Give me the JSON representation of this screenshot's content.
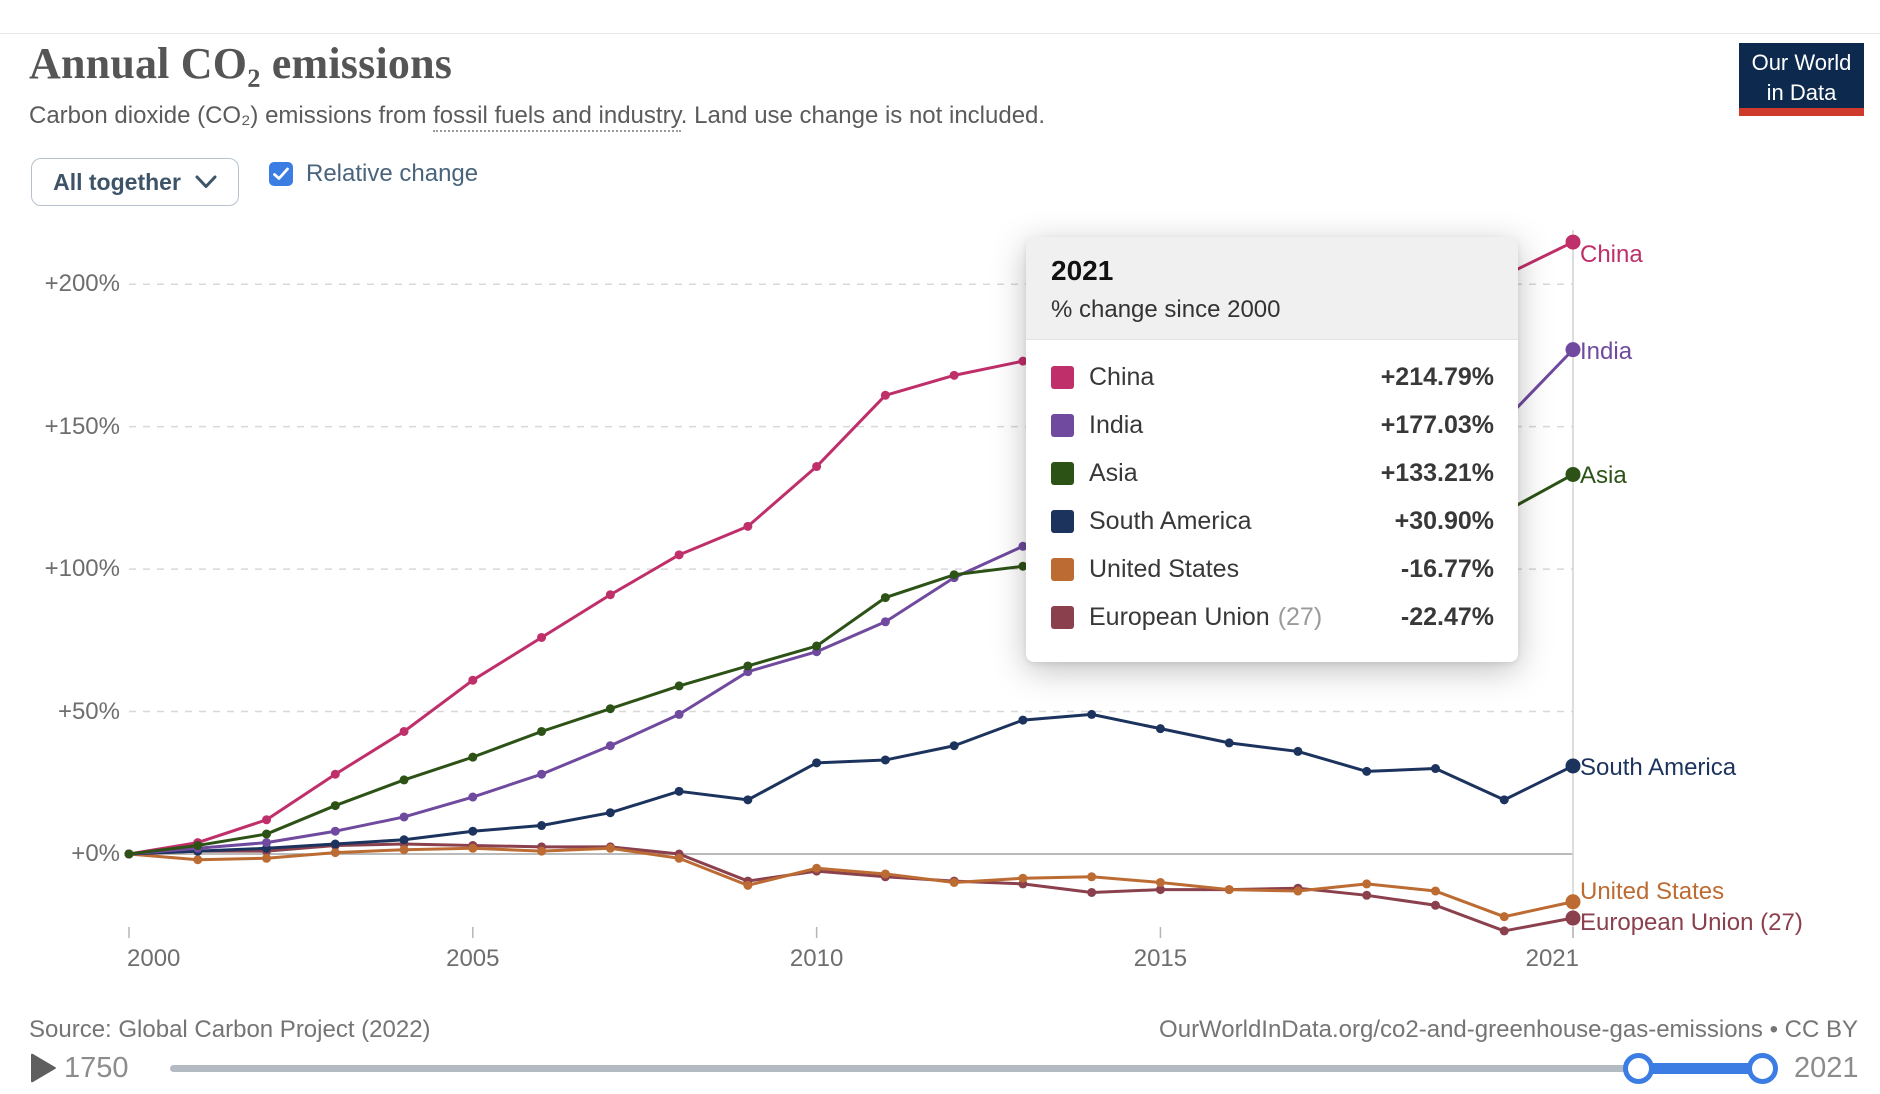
{
  "header": {
    "title": "Annual CO₂ emissions",
    "subtitle_pre": "Carbon dioxide (CO₂) emissions from ",
    "subtitle_link": "fossil fuels and industry",
    "subtitle_post": ". Land use change is not included.",
    "logo_line1": "Our World",
    "logo_line2": "in Data"
  },
  "controls": {
    "entity_dropdown_label": "All together",
    "relative_change_label": "Relative change",
    "checkbox_checked": true,
    "checkbox_color": "#3b7de3"
  },
  "tooltip": {
    "year": "2021",
    "subtitle": "% change since 2000",
    "rows": [
      {
        "label": "China",
        "note": "",
        "value": "+214.79%",
        "color": "#bf2f6a"
      },
      {
        "label": "India",
        "note": "",
        "value": "+177.03%",
        "color": "#6f4a9e"
      },
      {
        "label": "Asia",
        "note": "",
        "value": "+133.21%",
        "color": "#2c5216"
      },
      {
        "label": "South America",
        "note": "",
        "value": "+30.90%",
        "color": "#1c335e"
      },
      {
        "label": "United States",
        "note": "",
        "value": "-16.77%",
        "color": "#bc6b33"
      },
      {
        "label": "European Union",
        "note": "(27)",
        "value": "-22.47%",
        "color": "#8a404d"
      }
    ]
  },
  "chart_data": {
    "type": "line",
    "x": [
      2000,
      2001,
      2002,
      2003,
      2004,
      2005,
      2006,
      2007,
      2008,
      2009,
      2010,
      2011,
      2012,
      2013,
      2014,
      2015,
      2016,
      2017,
      2018,
      2019,
      2020,
      2021
    ],
    "x_ticks": [
      {
        "text": "2000",
        "year": 2000,
        "align": "left"
      },
      {
        "text": "2005",
        "year": 2005,
        "align": "center"
      },
      {
        "text": "2010",
        "year": 2010,
        "align": "center"
      },
      {
        "text": "2015",
        "year": 2015,
        "align": "center"
      },
      {
        "text": "2021",
        "year": 2021,
        "align": "right"
      }
    ],
    "y_ticks": [
      {
        "text": "+0%",
        "value": 0
      },
      {
        "text": "+50%",
        "value": 50
      },
      {
        "text": "+100%",
        "value": 100
      },
      {
        "text": "+150%",
        "value": 150
      },
      {
        "text": "+200%",
        "value": 200
      }
    ],
    "ylim": [
      -37,
      225
    ],
    "grid": "dashed-horizontal",
    "unit": "% change since 2000",
    "series": [
      {
        "name": "European Union (27)",
        "color": "#8a404d",
        "label_dy": 5,
        "values": [
          0,
          1,
          1,
          3,
          3.5,
          3,
          2.5,
          2.5,
          0,
          -9.5,
          -6,
          -8,
          -9.5,
          -10.5,
          -13.5,
          -12.5,
          -12.5,
          -12,
          -14.5,
          -18,
          -27,
          -22.47
        ]
      },
      {
        "name": "United States",
        "color": "#bc6b33",
        "label_dy": -10,
        "values": [
          0,
          -2,
          -1.5,
          0.5,
          1.5,
          2,
          1,
          2,
          -1.5,
          -11,
          -5,
          -7,
          -10,
          -8.5,
          -8,
          -10,
          -12.5,
          -13,
          -10.5,
          -13,
          -22,
          -16.77
        ]
      },
      {
        "name": "South America",
        "color": "#1c335e",
        "label_dy": 2,
        "values": [
          0,
          1,
          2,
          3.5,
          5,
          8,
          10,
          14.5,
          22,
          19,
          32,
          33,
          38,
          47,
          49,
          44,
          39,
          36,
          29,
          30,
          19,
          30.9
        ]
      },
      {
        "name": "China",
        "color": "#bf2f6a",
        "label_dy": 13,
        "values": [
          0,
          4,
          12,
          28,
          43,
          61,
          76,
          91,
          105,
          115,
          136,
          161,
          168,
          173,
          176,
          178,
          181,
          186,
          193,
          199,
          203,
          214.79
        ]
      },
      {
        "name": "India",
        "color": "#6f4a9e",
        "label_dy": 2,
        "values": [
          0,
          2,
          4,
          8,
          13,
          20,
          28,
          38,
          49,
          64,
          71,
          81.5,
          97,
          108,
          118,
          128,
          138,
          148,
          158,
          166,
          152,
          177.03
        ]
      },
      {
        "name": "Asia",
        "color": "#2c5216",
        "label_dy": 2,
        "values": [
          0,
          3,
          7,
          17,
          26,
          34,
          43,
          51,
          59,
          66,
          73,
          90,
          98,
          101,
          104,
          103,
          105,
          110,
          117,
          121,
          120,
          133.21
        ]
      }
    ]
  },
  "footer": {
    "source": "Source: Global Carbon Project (2022)",
    "credit": "OurWorldInData.org/co2-and-greenhouse-gas-emissions • CC BY"
  },
  "timeline": {
    "start_year": "1750",
    "end_year": "2021",
    "active_color": "#3b7de3"
  }
}
